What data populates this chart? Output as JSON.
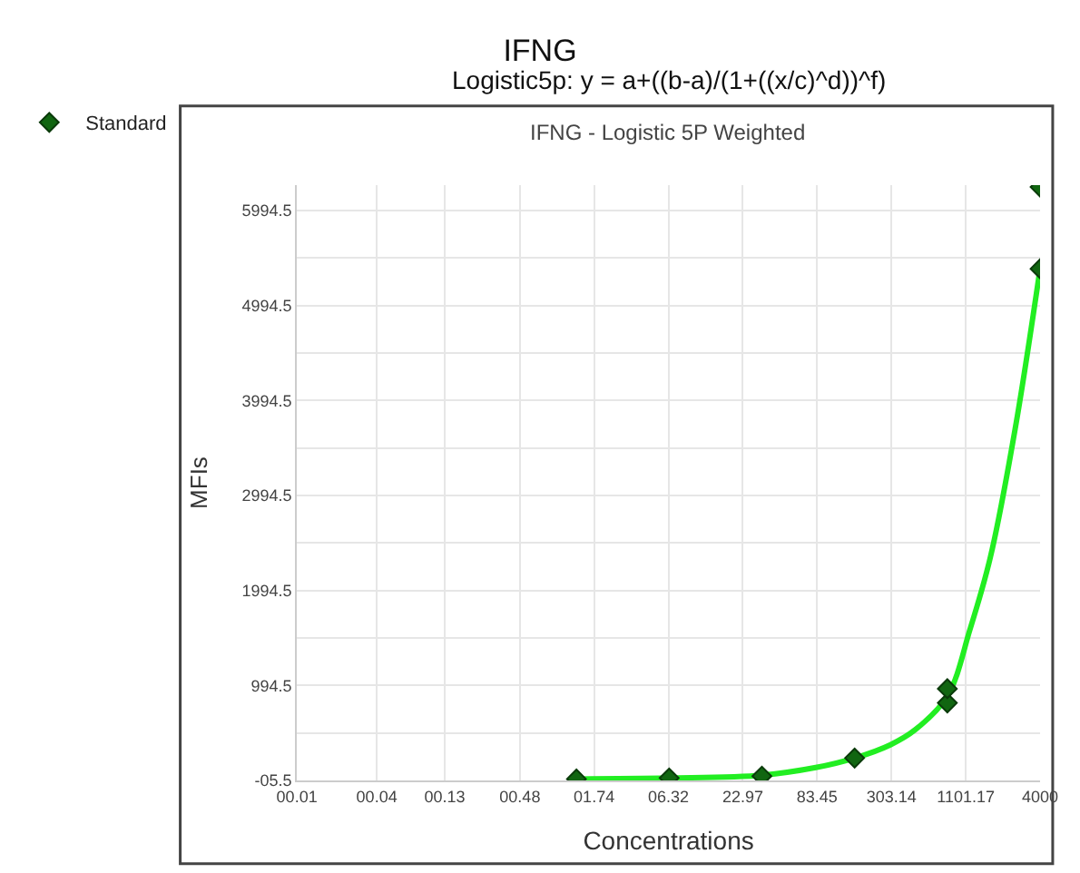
{
  "chart_data": {
    "type": "scatter",
    "title": "IFNG",
    "subtitle": "Logistic5p: y = a+((b-a)/(1+((x/c)^d))^f)",
    "annotations": [
      "IFNG - Logistic 5P Weighted"
    ],
    "xlabel": "Concentrations",
    "ylabel": "MFIs",
    "log": "x",
    "series": [
      {
        "type": "line",
        "color": "#22ee22",
        "marker": "none",
        "x": [
          1.28,
          6.4,
          32,
          81.5,
          160,
          298,
          460,
          800,
          1189,
          1686,
          2593,
          4000
        ],
        "values": [
          10,
          20,
          50,
          130,
          230,
          370,
          530,
          880,
          1590,
          2340,
          3690,
          5380
        ]
      },
      {
        "name": "Standard",
        "color": "#116611",
        "marker": "diamond",
        "x": [
          1.28,
          6.4,
          32,
          160,
          800,
          800,
          4000,
          4000
        ],
        "values": [
          10,
          20,
          40,
          230,
          810,
          960,
          5380,
          6240
        ]
      }
    ],
    "xlim": [
      0.01,
      4000
    ],
    "xticks": [
      {
        "value": 0.01,
        "label": "00.01"
      },
      {
        "value": 0.04,
        "label": "00.04"
      },
      {
        "value": 0.13,
        "label": "00.13"
      },
      {
        "value": 0.48,
        "label": "00.48"
      },
      {
        "value": 1.74,
        "label": "01.74"
      },
      {
        "value": 6.32,
        "label": "06.32"
      },
      22.97,
      83.45,
      303.14,
      1101.17,
      4000
    ],
    "ylim": [
      -5.5,
      6260
    ],
    "yticks": [
      {
        "value": -5.5,
        "label": "-05.5"
      },
      {
        "value": 494.5,
        "label": null
      },
      994.5,
      {
        "value": 1494.5,
        "label": null
      },
      1994.5,
      {
        "value": 2494.5,
        "label": null
      },
      2994.5,
      {
        "value": 3494.5,
        "label": null
      },
      3994.5,
      {
        "value": 4494.5,
        "label": null
      },
      4994.5,
      {
        "value": 5494.5,
        "label": null
      },
      5994.5
    ],
    "grid": true,
    "legend": "top left"
  }
}
